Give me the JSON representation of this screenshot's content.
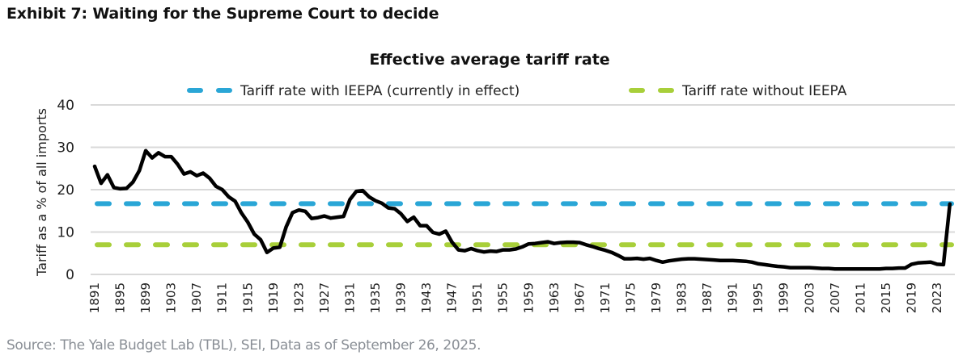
{
  "exhibit": {
    "title": "Exhibit 7: Waiting for the Supreme Court to decide",
    "source": "Source: The Yale Budget Lab (TBL), SEI, Data as of September 26, 2025."
  },
  "chart_data": {
    "type": "line",
    "title": "Effective average tariff rate",
    "xlabel": "",
    "ylabel": "Tariff as a % of all imports",
    "ylim": [
      0,
      40
    ],
    "yticks": [
      0,
      10,
      20,
      30,
      40
    ],
    "xlim": [
      1891,
      2025
    ],
    "xtick_labels": [
      "1891",
      "1895",
      "1899",
      "1903",
      "1907",
      "1911",
      "1915",
      "1919",
      "1923",
      "1927",
      "1931",
      "1935",
      "1939",
      "1943",
      "1947",
      "1951",
      "1955",
      "1959",
      "1963",
      "1967",
      "1971",
      "1975",
      "1979",
      "1983",
      "1987",
      "1991",
      "1995",
      "1999",
      "2003",
      "2007",
      "2011",
      "2015",
      "2019",
      "2023"
    ],
    "grid": true,
    "legend_position": "top",
    "legend": [
      {
        "name": "Tariff rate with IEEPA (currently in effect)",
        "color": "#2aa6d6",
        "style": "dashed"
      },
      {
        "name": "Tariff rate without IEEPA",
        "color": "#a8cf3a",
        "style": "dashed"
      }
    ],
    "series": [
      {
        "name": "Effective average tariff rate",
        "color": "#000000",
        "style": "solid",
        "x": [
          1891,
          1892,
          1893,
          1894,
          1895,
          1896,
          1897,
          1898,
          1899,
          1900,
          1901,
          1902,
          1903,
          1904,
          1905,
          1906,
          1907,
          1908,
          1909,
          1910,
          1911,
          1912,
          1913,
          1914,
          1915,
          1916,
          1917,
          1918,
          1919,
          1920,
          1921,
          1922,
          1923,
          1924,
          1925,
          1926,
          1927,
          1928,
          1929,
          1930,
          1931,
          1932,
          1933,
          1934,
          1935,
          1936,
          1937,
          1938,
          1939,
          1940,
          1941,
          1942,
          1943,
          1944,
          1945,
          1946,
          1947,
          1948,
          1949,
          1950,
          1951,
          1952,
          1953,
          1954,
          1955,
          1956,
          1957,
          1958,
          1959,
          1960,
          1961,
          1962,
          1963,
          1964,
          1965,
          1966,
          1967,
          1968,
          1969,
          1970,
          1971,
          1972,
          1973,
          1974,
          1975,
          1976,
          1977,
          1978,
          1979,
          1980,
          1981,
          1982,
          1983,
          1984,
          1985,
          1986,
          1987,
          1988,
          1989,
          1990,
          1991,
          1992,
          1993,
          1994,
          1995,
          1996,
          1997,
          1998,
          1999,
          2000,
          2001,
          2002,
          2003,
          2004,
          2005,
          2006,
          2007,
          2008,
          2009,
          2010,
          2011,
          2012,
          2013,
          2014,
          2015,
          2016,
          2017,
          2018,
          2019,
          2020,
          2021,
          2022,
          2023,
          2024,
          2025
        ],
        "values": [
          25.5,
          21.5,
          23.5,
          20.5,
          20.2,
          20.3,
          21.8,
          24.5,
          29.2,
          27.5,
          28.7,
          27.8,
          27.8,
          26.0,
          23.7,
          24.2,
          23.3,
          23.9,
          22.7,
          20.8,
          20.0,
          18.3,
          17.3,
          14.5,
          12.3,
          9.5,
          8.2,
          5.2,
          6.2,
          6.4,
          11.2,
          14.6,
          15.2,
          14.9,
          13.2,
          13.4,
          13.8,
          13.3,
          13.5,
          13.7,
          17.7,
          19.6,
          19.8,
          18.3,
          17.4,
          16.8,
          15.7,
          15.5,
          14.3,
          12.5,
          13.5,
          11.5,
          11.5,
          9.9,
          9.5,
          10.2,
          7.6,
          5.8,
          5.6,
          6.1,
          5.6,
          5.3,
          5.5,
          5.4,
          5.8,
          5.8,
          6.0,
          6.5,
          7.2,
          7.3,
          7.5,
          7.7,
          7.3,
          7.5,
          7.6,
          7.6,
          7.5,
          7.0,
          6.6,
          6.1,
          5.7,
          5.2,
          4.5,
          3.7,
          3.7,
          3.8,
          3.6,
          3.8,
          3.3,
          2.9,
          3.2,
          3.4,
          3.6,
          3.7,
          3.7,
          3.6,
          3.5,
          3.4,
          3.3,
          3.3,
          3.3,
          3.2,
          3.1,
          2.9,
          2.5,
          2.3,
          2.1,
          1.9,
          1.8,
          1.6,
          1.6,
          1.6,
          1.6,
          1.5,
          1.4,
          1.4,
          1.3,
          1.3,
          1.3,
          1.3,
          1.3,
          1.3,
          1.3,
          1.3,
          1.4,
          1.4,
          1.5,
          1.5,
          2.4,
          2.7,
          2.8,
          2.9,
          2.4,
          2.3,
          16.6
        ]
      },
      {
        "name": "Tariff rate with IEEPA (currently in effect)",
        "color": "#2aa6d6",
        "style": "dashed",
        "constant": 16.7
      },
      {
        "name": "Tariff rate without IEEPA",
        "color": "#a8cf3a",
        "style": "dashed",
        "constant": 7.0
      }
    ]
  }
}
